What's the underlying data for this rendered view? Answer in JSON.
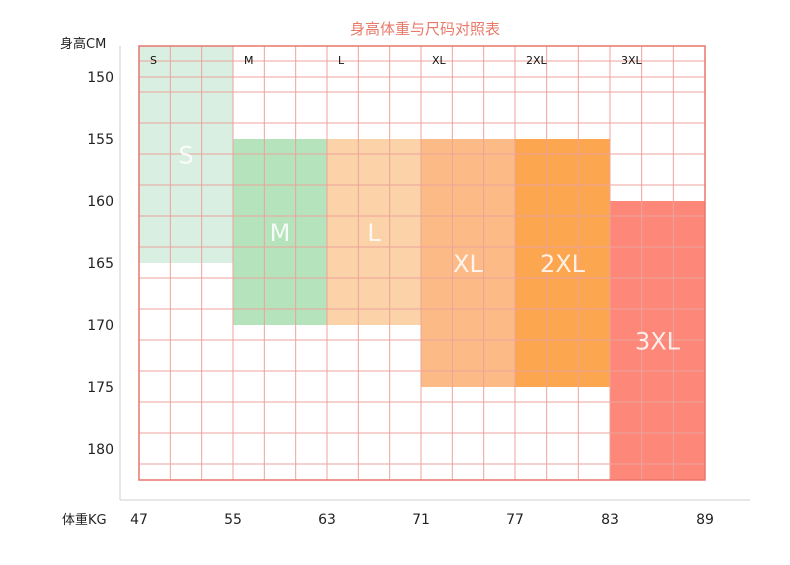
{
  "chart_data": {
    "type": "heatmap",
    "title": "身高体重与尺码对照表",
    "ylabel": "身高CM",
    "xlabel": "体重KG",
    "y_ticks": [
      150,
      155,
      160,
      165,
      170,
      175,
      180
    ],
    "x_ticks": [
      47,
      55,
      63,
      71,
      77,
      83,
      89
    ],
    "column_sizes": [
      "S",
      "M",
      "L",
      "XL",
      "2XL",
      "3XL"
    ],
    "sizes": [
      {
        "name": "S",
        "weight_range": [
          47,
          55
        ],
        "height_range": [
          148,
          165
        ],
        "color": "#d9efe1"
      },
      {
        "name": "M",
        "weight_range": [
          55,
          63
        ],
        "height_range": [
          155,
          170
        ],
        "color": "#b5e4bc"
      },
      {
        "name": "L",
        "weight_range": [
          63,
          71
        ],
        "height_range": [
          155,
          170
        ],
        "color": "#fcd3a8"
      },
      {
        "name": "XL",
        "weight_range": [
          71,
          77
        ],
        "height_range": [
          155,
          175
        ],
        "color": "#fcbb86"
      },
      {
        "name": "2XL",
        "weight_range": [
          77,
          83
        ],
        "height_range": [
          155,
          175
        ],
        "color": "#fca64f"
      },
      {
        "name": "3XL",
        "weight_range": [
          83,
          89
        ],
        "height_range": [
          160,
          182
        ],
        "color": "#fd8779"
      }
    ],
    "grid": true
  }
}
